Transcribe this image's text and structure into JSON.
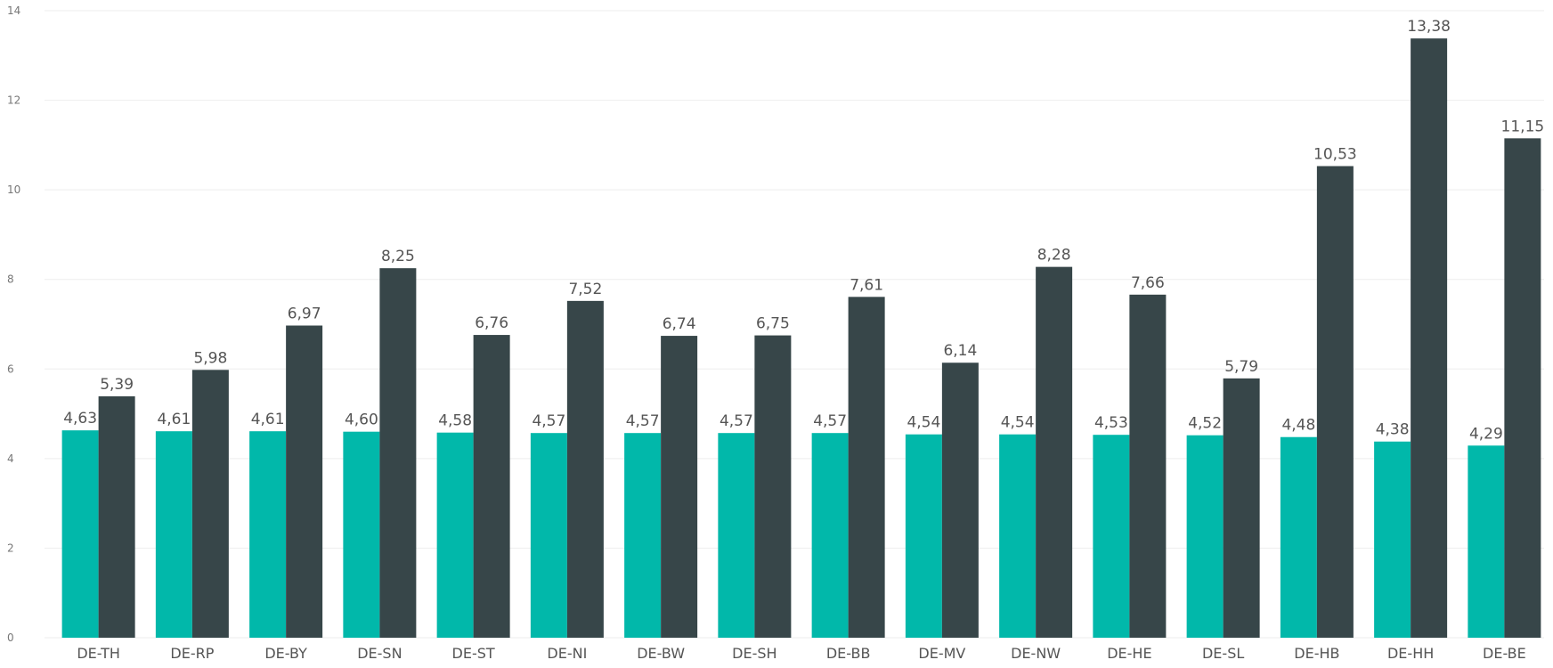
{
  "chart_data": {
    "type": "bar",
    "title": "",
    "xlabel": "",
    "ylabel": "",
    "ylim": [
      0,
      14
    ],
    "yticks": [
      "0",
      "2",
      "4",
      "6",
      "8",
      "10",
      "12",
      "14"
    ],
    "grid": true,
    "legend": "none",
    "categories": [
      "DE-TH",
      "DE-RP",
      "DE-BY",
      "DE-SN",
      "DE-ST",
      "DE-NI",
      "DE-BW",
      "DE-SH",
      "DE-BB",
      "DE-MV",
      "DE-NW",
      "DE-HE",
      "DE-SL",
      "DE-HB",
      "DE-HH",
      "DE-BE"
    ],
    "series": [
      {
        "color": "#01b8aa",
        "values": [
          4.63,
          4.61,
          4.61,
          4.6,
          4.58,
          4.57,
          4.57,
          4.57,
          4.57,
          4.54,
          4.54,
          4.53,
          4.52,
          4.48,
          4.38,
          4.29
        ],
        "labels": [
          "4,63",
          "4,61",
          "4,61",
          "4,60",
          "4,58",
          "4,57",
          "4,57",
          "4,57",
          "4,57",
          "4,54",
          "4,54",
          "4,53",
          "4,52",
          "4,48",
          "4,38",
          "4,29"
        ]
      },
      {
        "color": "#374649",
        "values": [
          5.39,
          5.98,
          6.97,
          8.25,
          6.76,
          7.52,
          6.74,
          6.75,
          7.61,
          6.14,
          8.28,
          7.66,
          5.79,
          10.53,
          13.38,
          11.15
        ],
        "labels": [
          "5,39",
          "5,98",
          "6,97",
          "8,25",
          "6,76",
          "7,52",
          "6,74",
          "6,75",
          "7,61",
          "6,14",
          "8,28",
          "7,66",
          "5,79",
          "10,53",
          "13,38",
          "11,15"
        ]
      }
    ]
  }
}
